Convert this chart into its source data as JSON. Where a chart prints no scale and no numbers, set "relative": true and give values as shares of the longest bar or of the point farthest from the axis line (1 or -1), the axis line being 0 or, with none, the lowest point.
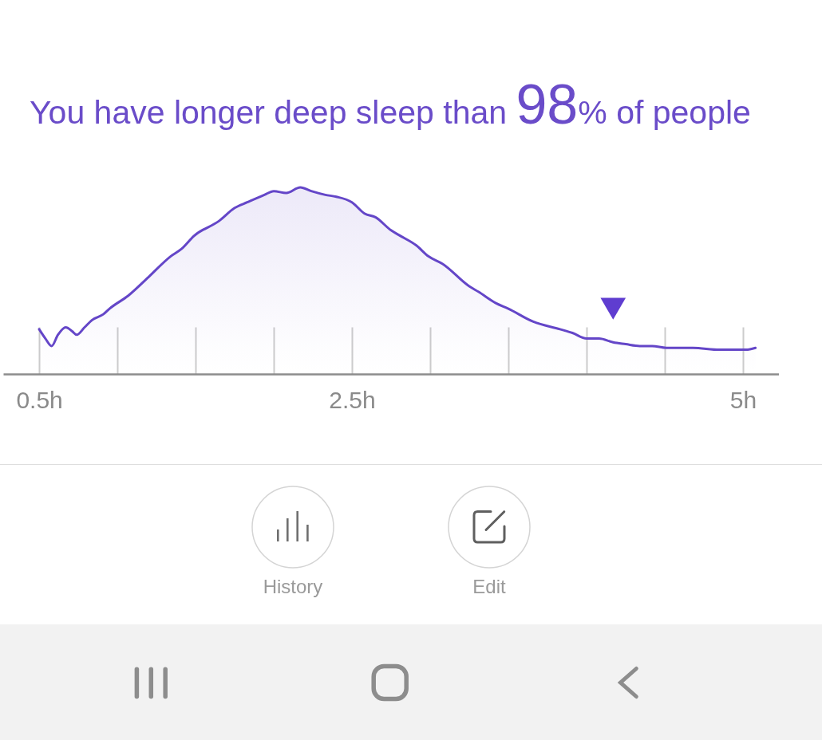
{
  "chart_data": {
    "type": "area",
    "title": "You have longer deep sleep than 98% of people",
    "relative": true,
    "grid": "x",
    "xlim": [
      0.27,
      5.23
    ],
    "xticks": [
      {
        "value": 0.5,
        "label": "0.5h"
      },
      {
        "value": 1,
        "label": null
      },
      {
        "value": 1.5,
        "label": null
      },
      {
        "value": 2,
        "label": null
      },
      {
        "value": 2.5,
        "label": "2.5h"
      },
      {
        "value": 3,
        "label": null
      },
      {
        "value": 3.5,
        "label": null
      },
      {
        "value": 4,
        "label": null
      },
      {
        "value": 4.5,
        "label": null
      },
      {
        "value": 5,
        "label": "5h"
      }
    ],
    "series": [
      {
        "color": "#6446c8",
        "x": [
          0.5,
          0.54,
          0.58,
          0.62,
          0.67,
          0.71,
          0.74,
          0.79,
          0.84,
          0.91,
          0.95,
          1.07,
          1.2,
          1.34,
          1.41,
          1.49,
          1.65,
          1.75,
          1.83,
          1.94,
          2.0,
          2.08,
          2.17,
          2.24,
          2.33,
          2.4,
          2.5,
          2.58,
          2.65,
          2.75,
          2.81,
          2.91,
          2.99,
          3.08,
          3.25,
          3.31,
          3.42,
          3.5,
          3.66,
          3.83,
          3.91,
          4.0,
          4.08,
          4.17,
          4.25,
          4.34,
          4.42,
          4.51,
          4.68,
          4.85,
          4.98,
          5.02,
          5.08
        ],
        "values": [
          0.24,
          0.19,
          0.15,
          0.21,
          0.25,
          0.23,
          0.21,
          0.25,
          0.29,
          0.32,
          0.35,
          0.42,
          0.52,
          0.63,
          0.67,
          0.74,
          0.82,
          0.89,
          0.92,
          0.96,
          0.98,
          0.97,
          1.0,
          0.98,
          0.96,
          0.95,
          0.92,
          0.86,
          0.84,
          0.77,
          0.74,
          0.69,
          0.63,
          0.59,
          0.47,
          0.44,
          0.38,
          0.35,
          0.28,
          0.24,
          0.22,
          0.19,
          0.19,
          0.17,
          0.16,
          0.15,
          0.15,
          0.14,
          0.14,
          0.13,
          0.13,
          0.13,
          0.14
        ]
      },
      {
        "type": "scatter",
        "color": "#5f3dd0",
        "marker": "triangle",
        "x": [
          4.17
        ],
        "values": [
          0.35
        ]
      }
    ],
    "annotations": [
      "History",
      "Edit"
    ]
  }
}
